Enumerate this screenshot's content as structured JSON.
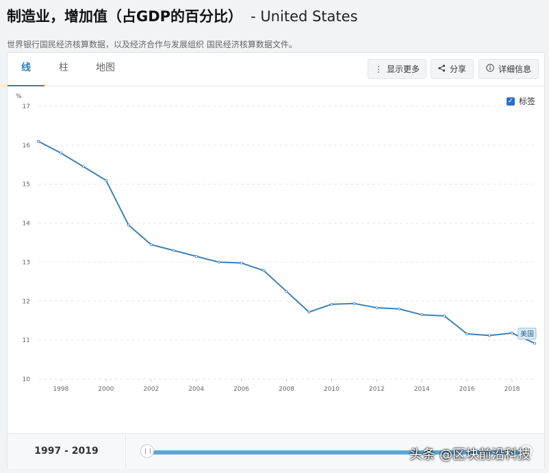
{
  "header": {
    "title": "制造业，增加值（占GDP的百分比）",
    "country": "- United States",
    "subtitle": "世界银行国民经济核算数据，以及经济合作与发展组织 国民经济核算数据文件。"
  },
  "tabs": [
    {
      "label": "线"
    },
    {
      "label": "柱"
    },
    {
      "label": "地图"
    }
  ],
  "toolbar": {
    "more_label": "显示更多",
    "share_label": "分享",
    "details_label": "详细信息"
  },
  "label_toggle": {
    "label": "标签",
    "checked": true
  },
  "footer": {
    "range_start": "1997",
    "range_sep": " - ",
    "range_end": "2019"
  },
  "watermark": "头条 @区块前沿科技",
  "colors": {
    "line": "#3b7fb5",
    "accent": "#2b82c4"
  },
  "chart_data": {
    "type": "line",
    "ylabel": "%",
    "ylim": [
      10,
      17
    ],
    "yticks": [
      10,
      11,
      12,
      13,
      14,
      15,
      16,
      17
    ],
    "xlim": [
      1997,
      2019
    ],
    "xticks": [
      1998,
      2000,
      2002,
      2004,
      2006,
      2008,
      2010,
      2012,
      2014,
      2016,
      2018
    ],
    "grid": true,
    "series": [
      {
        "name": "美国",
        "x": [
          1997,
          1998,
          1999,
          2000,
          2001,
          2002,
          2003,
          2004,
          2005,
          2006,
          2007,
          2008,
          2009,
          2010,
          2011,
          2012,
          2013,
          2014,
          2015,
          2016,
          2017,
          2018,
          2019
        ],
        "values": [
          16.1,
          15.8,
          15.45,
          15.1,
          13.95,
          13.45,
          13.3,
          13.15,
          13.0,
          12.98,
          12.78,
          12.25,
          11.72,
          11.92,
          11.94,
          11.83,
          11.8,
          11.65,
          11.62,
          11.16,
          11.12,
          11.18,
          10.92
        ]
      }
    ]
  }
}
